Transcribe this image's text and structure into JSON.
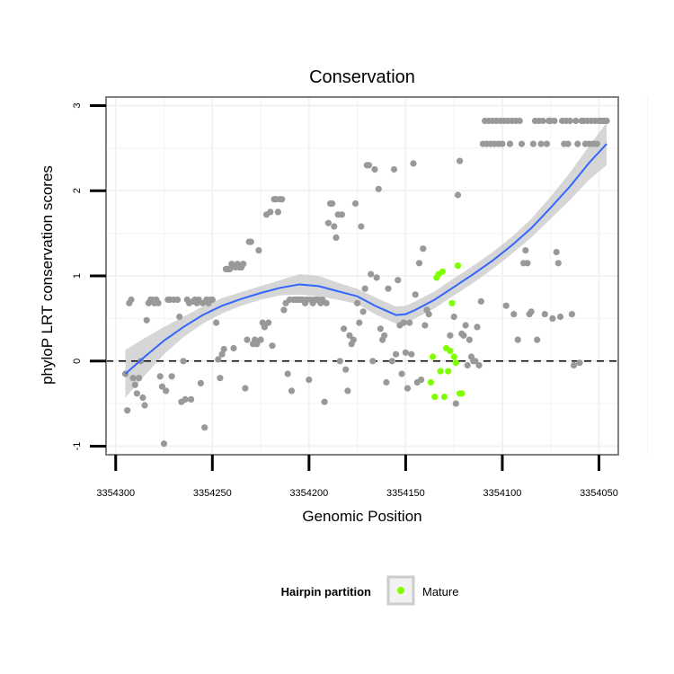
{
  "chart_data": {
    "type": "scatter",
    "title": "Conservation",
    "xlabel": "Genomic Position",
    "ylabel": "phyloP LRT conservation scores",
    "x_reversed": true,
    "xlim": [
      3354305,
      3354040
    ],
    "ylim": [
      -1.1,
      3.1
    ],
    "x_ticks": [
      3354300,
      3354250,
      3354200,
      3354150,
      3354100,
      3354050
    ],
    "x_tick_labels": [
      "3354300",
      "3354250",
      "3354200",
      "3354150",
      "3354100",
      "3354050"
    ],
    "y_ticks": [
      -1,
      0,
      1,
      2,
      3
    ],
    "y_tick_labels": [
      "-1",
      "0",
      "1",
      "2",
      "3"
    ],
    "reference_line": {
      "y": 0,
      "style": "dashed"
    },
    "grid": true,
    "colors": {
      "points": "#999999",
      "mature": "#80ff00",
      "smooth_line": "#3366ff",
      "ribbon": "#cccccc",
      "panel_border": "#808080",
      "grid": "#f2f2f2"
    },
    "legend": {
      "title": "Hairpin partition",
      "position": "bottom",
      "entries": [
        {
          "label": "Mature",
          "color": "#80ff00"
        }
      ]
    },
    "series": [
      {
        "name": "All positions",
        "color": "#999999",
        "points": [
          [
            3354295,
            -0.15
          ],
          [
            3354294,
            -0.58
          ],
          [
            3354293,
            0.68
          ],
          [
            3354292,
            0.72
          ],
          [
            3354291,
            -0.2
          ],
          [
            3354290,
            -0.28
          ],
          [
            3354289,
            -0.38
          ],
          [
            3354288,
            -0.2
          ],
          [
            3354287,
            0.0
          ],
          [
            3354286,
            -0.43
          ],
          [
            3354285,
            -0.52
          ],
          [
            3354284,
            0.48
          ],
          [
            3354283,
            0.68
          ],
          [
            3354282,
            0.72
          ],
          [
            3354281,
            0.72
          ],
          [
            3354280,
            0.68
          ],
          [
            3354279,
            0.72
          ],
          [
            3354278,
            0.68
          ],
          [
            3354277,
            -0.18
          ],
          [
            3354276,
            -0.3
          ],
          [
            3354275,
            -0.97
          ],
          [
            3354274,
            -0.35
          ],
          [
            3354273,
            0.72
          ],
          [
            3354272,
            0.72
          ],
          [
            3354271,
            -0.18
          ],
          [
            3354270,
            0.72
          ],
          [
            3354268,
            0.72
          ],
          [
            3354267,
            0.52
          ],
          [
            3354266,
            -0.48
          ],
          [
            3354265,
            0.0
          ],
          [
            3354264,
            -0.45
          ],
          [
            3354263,
            0.72
          ],
          [
            3354262,
            0.68
          ],
          [
            3354261,
            -0.45
          ],
          [
            3354260,
            0.7
          ],
          [
            3354259,
            0.72
          ],
          [
            3354258,
            0.68
          ],
          [
            3354257,
            0.72
          ],
          [
            3354256,
            -0.26
          ],
          [
            3354255,
            0.68
          ],
          [
            3354254,
            -0.78
          ],
          [
            3354253,
            0.72
          ],
          [
            3354252,
            0.68
          ],
          [
            3354251,
            0.72
          ],
          [
            3354250,
            0.72
          ],
          [
            3354248,
            0.45
          ],
          [
            3354247,
            0.02
          ],
          [
            3354246,
            -0.2
          ],
          [
            3354245,
            0.08
          ],
          [
            3354244,
            0.14
          ],
          [
            3354243,
            1.08
          ],
          [
            3354242,
            1.08
          ],
          [
            3354241,
            1.08
          ],
          [
            3354240,
            1.14
          ],
          [
            3354239,
            0.15
          ],
          [
            3354238,
            1.1
          ],
          [
            3354237,
            1.14
          ],
          [
            3354236,
            1.1
          ],
          [
            3354235,
            1.1
          ],
          [
            3354234,
            1.14
          ],
          [
            3354233,
            -0.32
          ],
          [
            3354232,
            0.25
          ],
          [
            3354231,
            1.4
          ],
          [
            3354230,
            1.4
          ],
          [
            3354229,
            0.2
          ],
          [
            3354228,
            0.25
          ],
          [
            3354227,
            0.2
          ],
          [
            3354226,
            1.3
          ],
          [
            3354225,
            0.25
          ],
          [
            3354224,
            0.45
          ],
          [
            3354223,
            0.4
          ],
          [
            3354222,
            1.72
          ],
          [
            3354221,
            0.45
          ],
          [
            3354220,
            1.75
          ],
          [
            3354219,
            0.18
          ],
          [
            3354218,
            1.9
          ],
          [
            3354217,
            1.9
          ],
          [
            3354216,
            1.75
          ],
          [
            3354215,
            1.9
          ],
          [
            3354214,
            1.9
          ],
          [
            3354213,
            0.6
          ],
          [
            3354212,
            0.68
          ],
          [
            3354211,
            -0.15
          ],
          [
            3354210,
            0.72
          ],
          [
            3354209,
            -0.35
          ],
          [
            3354208,
            0.72
          ],
          [
            3354207,
            0.72
          ],
          [
            3354206,
            0.72
          ],
          [
            3354205,
            0.72
          ],
          [
            3354204,
            0.72
          ],
          [
            3354203,
            0.72
          ],
          [
            3354202,
            0.68
          ],
          [
            3354201,
            0.72
          ],
          [
            3354200,
            -0.22
          ],
          [
            3354199,
            0.72
          ],
          [
            3354198,
            0.68
          ],
          [
            3354197,
            0.72
          ],
          [
            3354196,
            0.72
          ],
          [
            3354195,
            0.72
          ],
          [
            3354194,
            0.68
          ],
          [
            3354193,
            0.72
          ],
          [
            3354192,
            -0.48
          ],
          [
            3354191,
            0.68
          ],
          [
            3354190,
            1.62
          ],
          [
            3354189,
            1.85
          ],
          [
            3354188,
            1.85
          ],
          [
            3354187,
            1.58
          ],
          [
            3354186,
            1.45
          ],
          [
            3354185,
            1.72
          ],
          [
            3354184,
            0.0
          ],
          [
            3354183,
            1.72
          ],
          [
            3354182,
            0.38
          ],
          [
            3354181,
            -0.1
          ],
          [
            3354180,
            -0.35
          ],
          [
            3354179,
            0.3
          ],
          [
            3354178,
            0.2
          ],
          [
            3354177,
            0.25
          ],
          [
            3354176,
            1.85
          ],
          [
            3354175,
            0.68
          ],
          [
            3354174,
            0.45
          ],
          [
            3354173,
            1.58
          ],
          [
            3354172,
            0.58
          ],
          [
            3354171,
            0.85
          ],
          [
            3354170,
            2.3
          ],
          [
            3354169,
            2.3
          ],
          [
            3354168,
            1.02
          ],
          [
            3354167,
            0.0
          ],
          [
            3354166,
            2.25
          ],
          [
            3354165,
            0.98
          ],
          [
            3354164,
            2.02
          ],
          [
            3354163,
            0.38
          ],
          [
            3354162,
            0.25
          ],
          [
            3354161,
            0.3
          ],
          [
            3354160,
            -0.25
          ],
          [
            3354159,
            0.85
          ],
          [
            3354157,
            0.0
          ],
          [
            3354156,
            2.25
          ],
          [
            3354155,
            0.08
          ],
          [
            3354154,
            0.95
          ],
          [
            3354153,
            0.42
          ],
          [
            3354152,
            -0.15
          ],
          [
            3354151,
            0.45
          ],
          [
            3354150,
            0.1
          ],
          [
            3354149,
            -0.32
          ],
          [
            3354148,
            0.45
          ],
          [
            3354147,
            0.08
          ],
          [
            3354146,
            2.32
          ],
          [
            3354145,
            0.78
          ],
          [
            3354144,
            -0.25
          ],
          [
            3354143,
            1.15
          ],
          [
            3354142,
            -0.22
          ],
          [
            3354141,
            1.32
          ],
          [
            3354140,
            0.42
          ],
          [
            3354139,
            0.6
          ],
          [
            3354138,
            0.55
          ],
          [
            3354127,
            0.3
          ],
          [
            3354125,
            0.52
          ],
          [
            3354124,
            -0.5
          ],
          [
            3354123,
            1.95
          ],
          [
            3354122,
            2.35
          ],
          [
            3354121,
            0.32
          ],
          [
            3354120,
            0.3
          ],
          [
            3354119,
            0.42
          ],
          [
            3354118,
            -0.05
          ],
          [
            3354117,
            0.25
          ],
          [
            3354116,
            0.05
          ],
          [
            3354115,
            0.0
          ],
          [
            3354114,
            0.0
          ],
          [
            3354113,
            0.4
          ],
          [
            3354112,
            -0.05
          ],
          [
            3354111,
            0.7
          ],
          [
            3354110,
            2.55
          ],
          [
            3354109,
            2.82
          ],
          [
            3354108,
            2.55
          ],
          [
            3354107,
            2.82
          ],
          [
            3354106,
            2.55
          ],
          [
            3354105,
            2.82
          ],
          [
            3354104,
            2.55
          ],
          [
            3354103,
            2.82
          ],
          [
            3354102,
            2.55
          ],
          [
            3354101,
            2.82
          ],
          [
            3354100,
            2.55
          ],
          [
            3354099,
            2.82
          ],
          [
            3354098,
            0.65
          ],
          [
            3354097,
            2.82
          ],
          [
            3354096,
            2.55
          ],
          [
            3354095,
            2.82
          ],
          [
            3354094,
            0.55
          ],
          [
            3354093,
            2.82
          ],
          [
            3354092,
            0.25
          ],
          [
            3354091,
            2.82
          ],
          [
            3354090,
            2.55
          ],
          [
            3354089,
            1.15
          ],
          [
            3354088,
            1.3
          ],
          [
            3354087,
            1.15
          ],
          [
            3354086,
            0.55
          ],
          [
            3354085,
            0.58
          ],
          [
            3354084,
            2.55
          ],
          [
            3354083,
            2.82
          ],
          [
            3354082,
            0.25
          ],
          [
            3354081,
            2.82
          ],
          [
            3354080,
            2.55
          ],
          [
            3354079,
            2.82
          ],
          [
            3354078,
            0.55
          ],
          [
            3354077,
            2.55
          ],
          [
            3354076,
            2.82
          ],
          [
            3354075,
            2.82
          ],
          [
            3354074,
            0.5
          ],
          [
            3354073,
            2.82
          ],
          [
            3354072,
            1.28
          ],
          [
            3354071,
            1.15
          ],
          [
            3354070,
            0.52
          ],
          [
            3354069,
            2.82
          ],
          [
            3354068,
            2.55
          ],
          [
            3354067,
            2.82
          ],
          [
            3354066,
            2.55
          ],
          [
            3354065,
            2.82
          ],
          [
            3354064,
            0.55
          ],
          [
            3354063,
            -0.05
          ],
          [
            3354062,
            2.82
          ],
          [
            3354061,
            2.55
          ],
          [
            3354060,
            -0.02
          ],
          [
            3354059,
            2.82
          ],
          [
            3354058,
            2.82
          ],
          [
            3354057,
            2.55
          ],
          [
            3354056,
            2.82
          ],
          [
            3354055,
            2.55
          ],
          [
            3354054,
            2.82
          ],
          [
            3354053,
            2.55
          ],
          [
            3354052,
            2.82
          ],
          [
            3354051,
            2.55
          ],
          [
            3354050,
            2.82
          ],
          [
            3354049,
            2.82
          ],
          [
            3354048,
            2.82
          ],
          [
            3354047,
            2.82
          ],
          [
            3354046,
            2.82
          ]
        ]
      },
      {
        "name": "Mature",
        "color": "#80ff00",
        "points": [
          [
            3354137,
            -0.25
          ],
          [
            3354136,
            0.05
          ],
          [
            3354135,
            -0.42
          ],
          [
            3354134,
            0.98
          ],
          [
            3354133,
            1.02
          ],
          [
            3354132,
            -0.12
          ],
          [
            3354131,
            1.05
          ],
          [
            3354130,
            -0.42
          ],
          [
            3354129,
            0.15
          ],
          [
            3354128,
            -0.12
          ],
          [
            3354127,
            0.12
          ],
          [
            3354126,
            0.68
          ],
          [
            3354125,
            0.05
          ],
          [
            3354124,
            -0.02
          ],
          [
            3354123,
            1.12
          ],
          [
            3354122,
            -0.38
          ],
          [
            3354121,
            -0.38
          ]
        ]
      }
    ],
    "smooth": {
      "method": "loess",
      "x": [
        3354295,
        3354285,
        3354275,
        3354265,
        3354255,
        3354245,
        3354235,
        3354225,
        3354215,
        3354205,
        3354195,
        3354185,
        3354175,
        3354165,
        3354155,
        3354150,
        3354145,
        3354135,
        3354125,
        3354115,
        3354105,
        3354095,
        3354085,
        3354075,
        3354065,
        3354055,
        3354046
      ],
      "y": [
        -0.15,
        0.05,
        0.24,
        0.4,
        0.54,
        0.65,
        0.73,
        0.8,
        0.86,
        0.9,
        0.88,
        0.82,
        0.76,
        0.64,
        0.54,
        0.55,
        0.6,
        0.72,
        0.87,
        1.02,
        1.18,
        1.36,
        1.56,
        1.8,
        2.05,
        2.33,
        2.55
      ],
      "band": [
        0.28,
        0.22,
        0.16,
        0.12,
        0.1,
        0.09,
        0.08,
        0.08,
        0.09,
        0.12,
        0.12,
        0.1,
        0.09,
        0.1,
        0.1,
        0.1,
        0.1,
        0.1,
        0.1,
        0.1,
        0.1,
        0.1,
        0.11,
        0.13,
        0.16,
        0.2,
        0.25
      ]
    }
  }
}
